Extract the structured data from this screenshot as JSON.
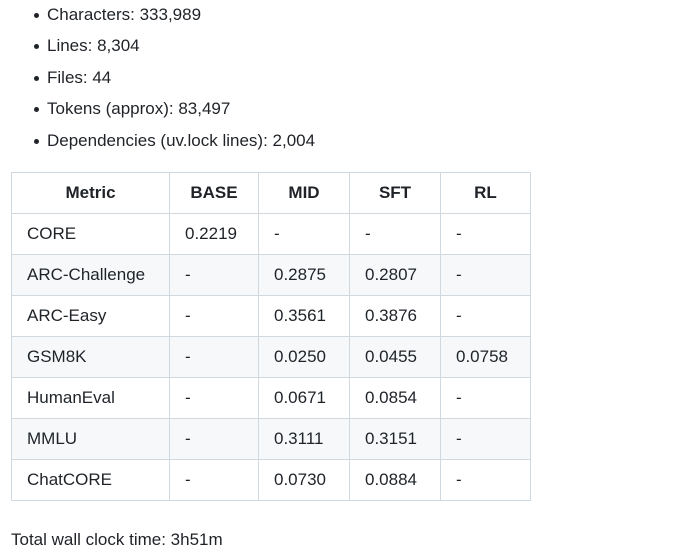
{
  "stats": [
    "Characters: 333,989",
    "Lines: 8,304",
    "Files: 44",
    "Tokens (approx): 83,497",
    "Dependencies (uv.lock lines): 2,004"
  ],
  "table": {
    "headers": [
      "Metric",
      "BASE",
      "MID",
      "SFT",
      "RL"
    ],
    "rows": [
      [
        "CORE",
        "0.2219",
        "-",
        "-",
        "-"
      ],
      [
        "ARC-Challenge",
        "-",
        "0.2875",
        "0.2807",
        "-"
      ],
      [
        "ARC-Easy",
        "-",
        "0.3561",
        "0.3876",
        "-"
      ],
      [
        "GSM8K",
        "-",
        "0.0250",
        "0.0455",
        "0.0758"
      ],
      [
        "HumanEval",
        "-",
        "0.0671",
        "0.0854",
        "-"
      ],
      [
        "MMLU",
        "-",
        "0.3111",
        "0.3151",
        "-"
      ],
      [
        "ChatCORE",
        "-",
        "0.0730",
        "0.0884",
        "-"
      ]
    ]
  },
  "footer": "Total wall clock time: 3h51m"
}
